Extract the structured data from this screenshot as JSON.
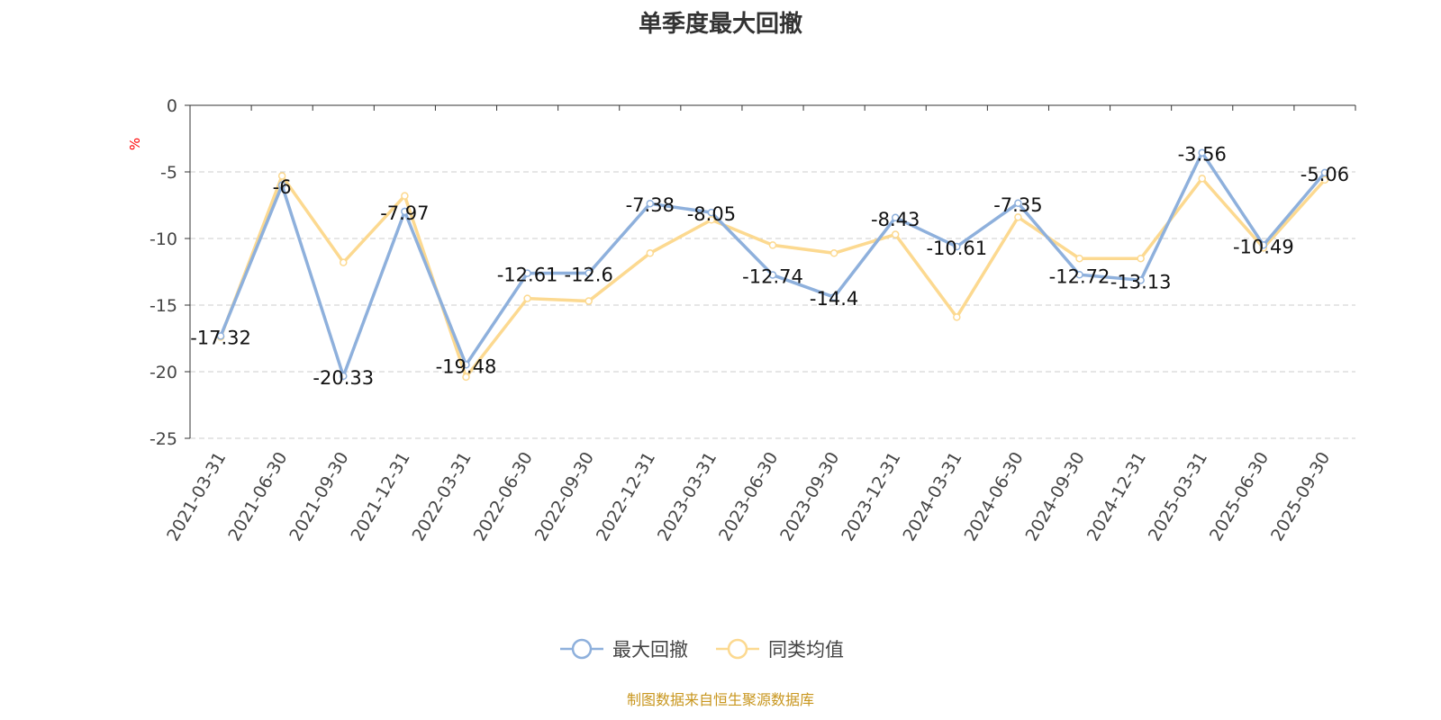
{
  "title": "单季度最大回撤",
  "footer": "制图数据来自恒生聚源数据库",
  "chart_data": {
    "type": "line",
    "title": "单季度最大回撤",
    "ylabel": "%",
    "xlabel": "",
    "ylim": [
      -25,
      0
    ],
    "yticks": [
      0,
      -5,
      -10,
      -15,
      -20,
      -25
    ],
    "grid": true,
    "legend_position": "bottom",
    "categories": [
      "2021-03-31",
      "2021-06-30",
      "2021-09-30",
      "2021-12-31",
      "2022-03-31",
      "2022-06-30",
      "2022-09-30",
      "2022-12-31",
      "2023-03-31",
      "2023-06-30",
      "2023-09-30",
      "2023-12-31",
      "2024-03-31",
      "2024-06-30",
      "2024-09-30",
      "2024-12-31",
      "2025-03-31",
      "2025-06-30",
      "2025-09-30"
    ],
    "series": [
      {
        "name": "最大回撤",
        "color": "#8eb0dc",
        "labels": true,
        "values": [
          -17.32,
          -6,
          -20.33,
          -7.97,
          -19.48,
          -12.61,
          -12.6,
          -7.38,
          -8.05,
          -12.74,
          -14.4,
          -8.43,
          -10.61,
          -7.35,
          -12.72,
          -13.13,
          -3.56,
          -10.49,
          -5.06
        ]
      },
      {
        "name": "同类均值",
        "color": "#fcd990",
        "labels": false,
        "values": [
          -17.4,
          -5.3,
          -11.8,
          -6.8,
          -20.4,
          -14.5,
          -14.7,
          -11.1,
          -8.6,
          -10.5,
          -11.1,
          -9.7,
          -15.9,
          -8.4,
          -11.5,
          -11.5,
          -5.5,
          -10.7,
          -5.6
        ]
      }
    ]
  }
}
